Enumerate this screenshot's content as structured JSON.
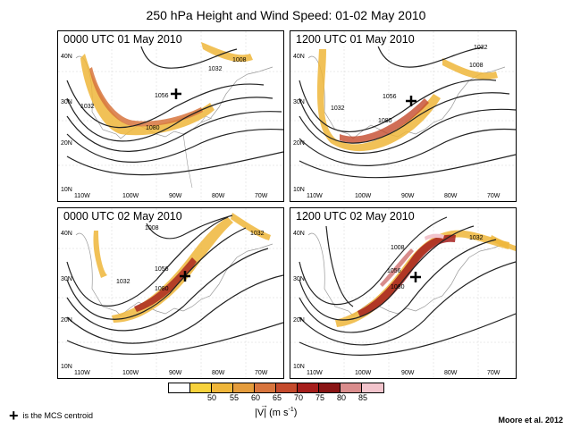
{
  "title": "250 hPa Height and Wind Speed: 01-02 May 2010",
  "panels": [
    {
      "label": "0000 UTC 01 May 2010",
      "contour_labels": [
        "1008",
        "1032",
        "1056",
        "1032",
        "1080"
      ]
    },
    {
      "label": "1200 UTC 01 May 2010",
      "contour_labels": [
        "1008",
        "1032",
        "1056",
        "1032",
        "1080"
      ]
    },
    {
      "label": "0000 UTC 02 May 2010",
      "contour_labels": [
        "1008",
        "1032",
        "1056",
        "1032",
        "1080"
      ]
    },
    {
      "label": "1200 UTC 02 May 2010",
      "contour_labels": [
        "1008",
        "1032",
        "1056",
        "1080"
      ]
    }
  ],
  "lat_labels": [
    "40N",
    "30N",
    "20N",
    "10N"
  ],
  "lon_labels": [
    "110W",
    "100W",
    "90W",
    "80W",
    "70W"
  ],
  "colorbar": {
    "colors": [
      "#ffffff",
      "#f7d23c",
      "#efb63a",
      "#e49c3c",
      "#d7743d",
      "#c44a2c",
      "#a61e1c",
      "#8a1515",
      "#d98c8c",
      "#f2c4cc"
    ],
    "ticks": [
      "50",
      "55",
      "60",
      "65",
      "70",
      "75",
      "80",
      "85"
    ]
  },
  "units_label": "|V| (m s",
  "units_exp": "-1",
  "units_close": ")",
  "legend_text": "is the MCS centroid",
  "credit": "Moore et al. 2012"
}
